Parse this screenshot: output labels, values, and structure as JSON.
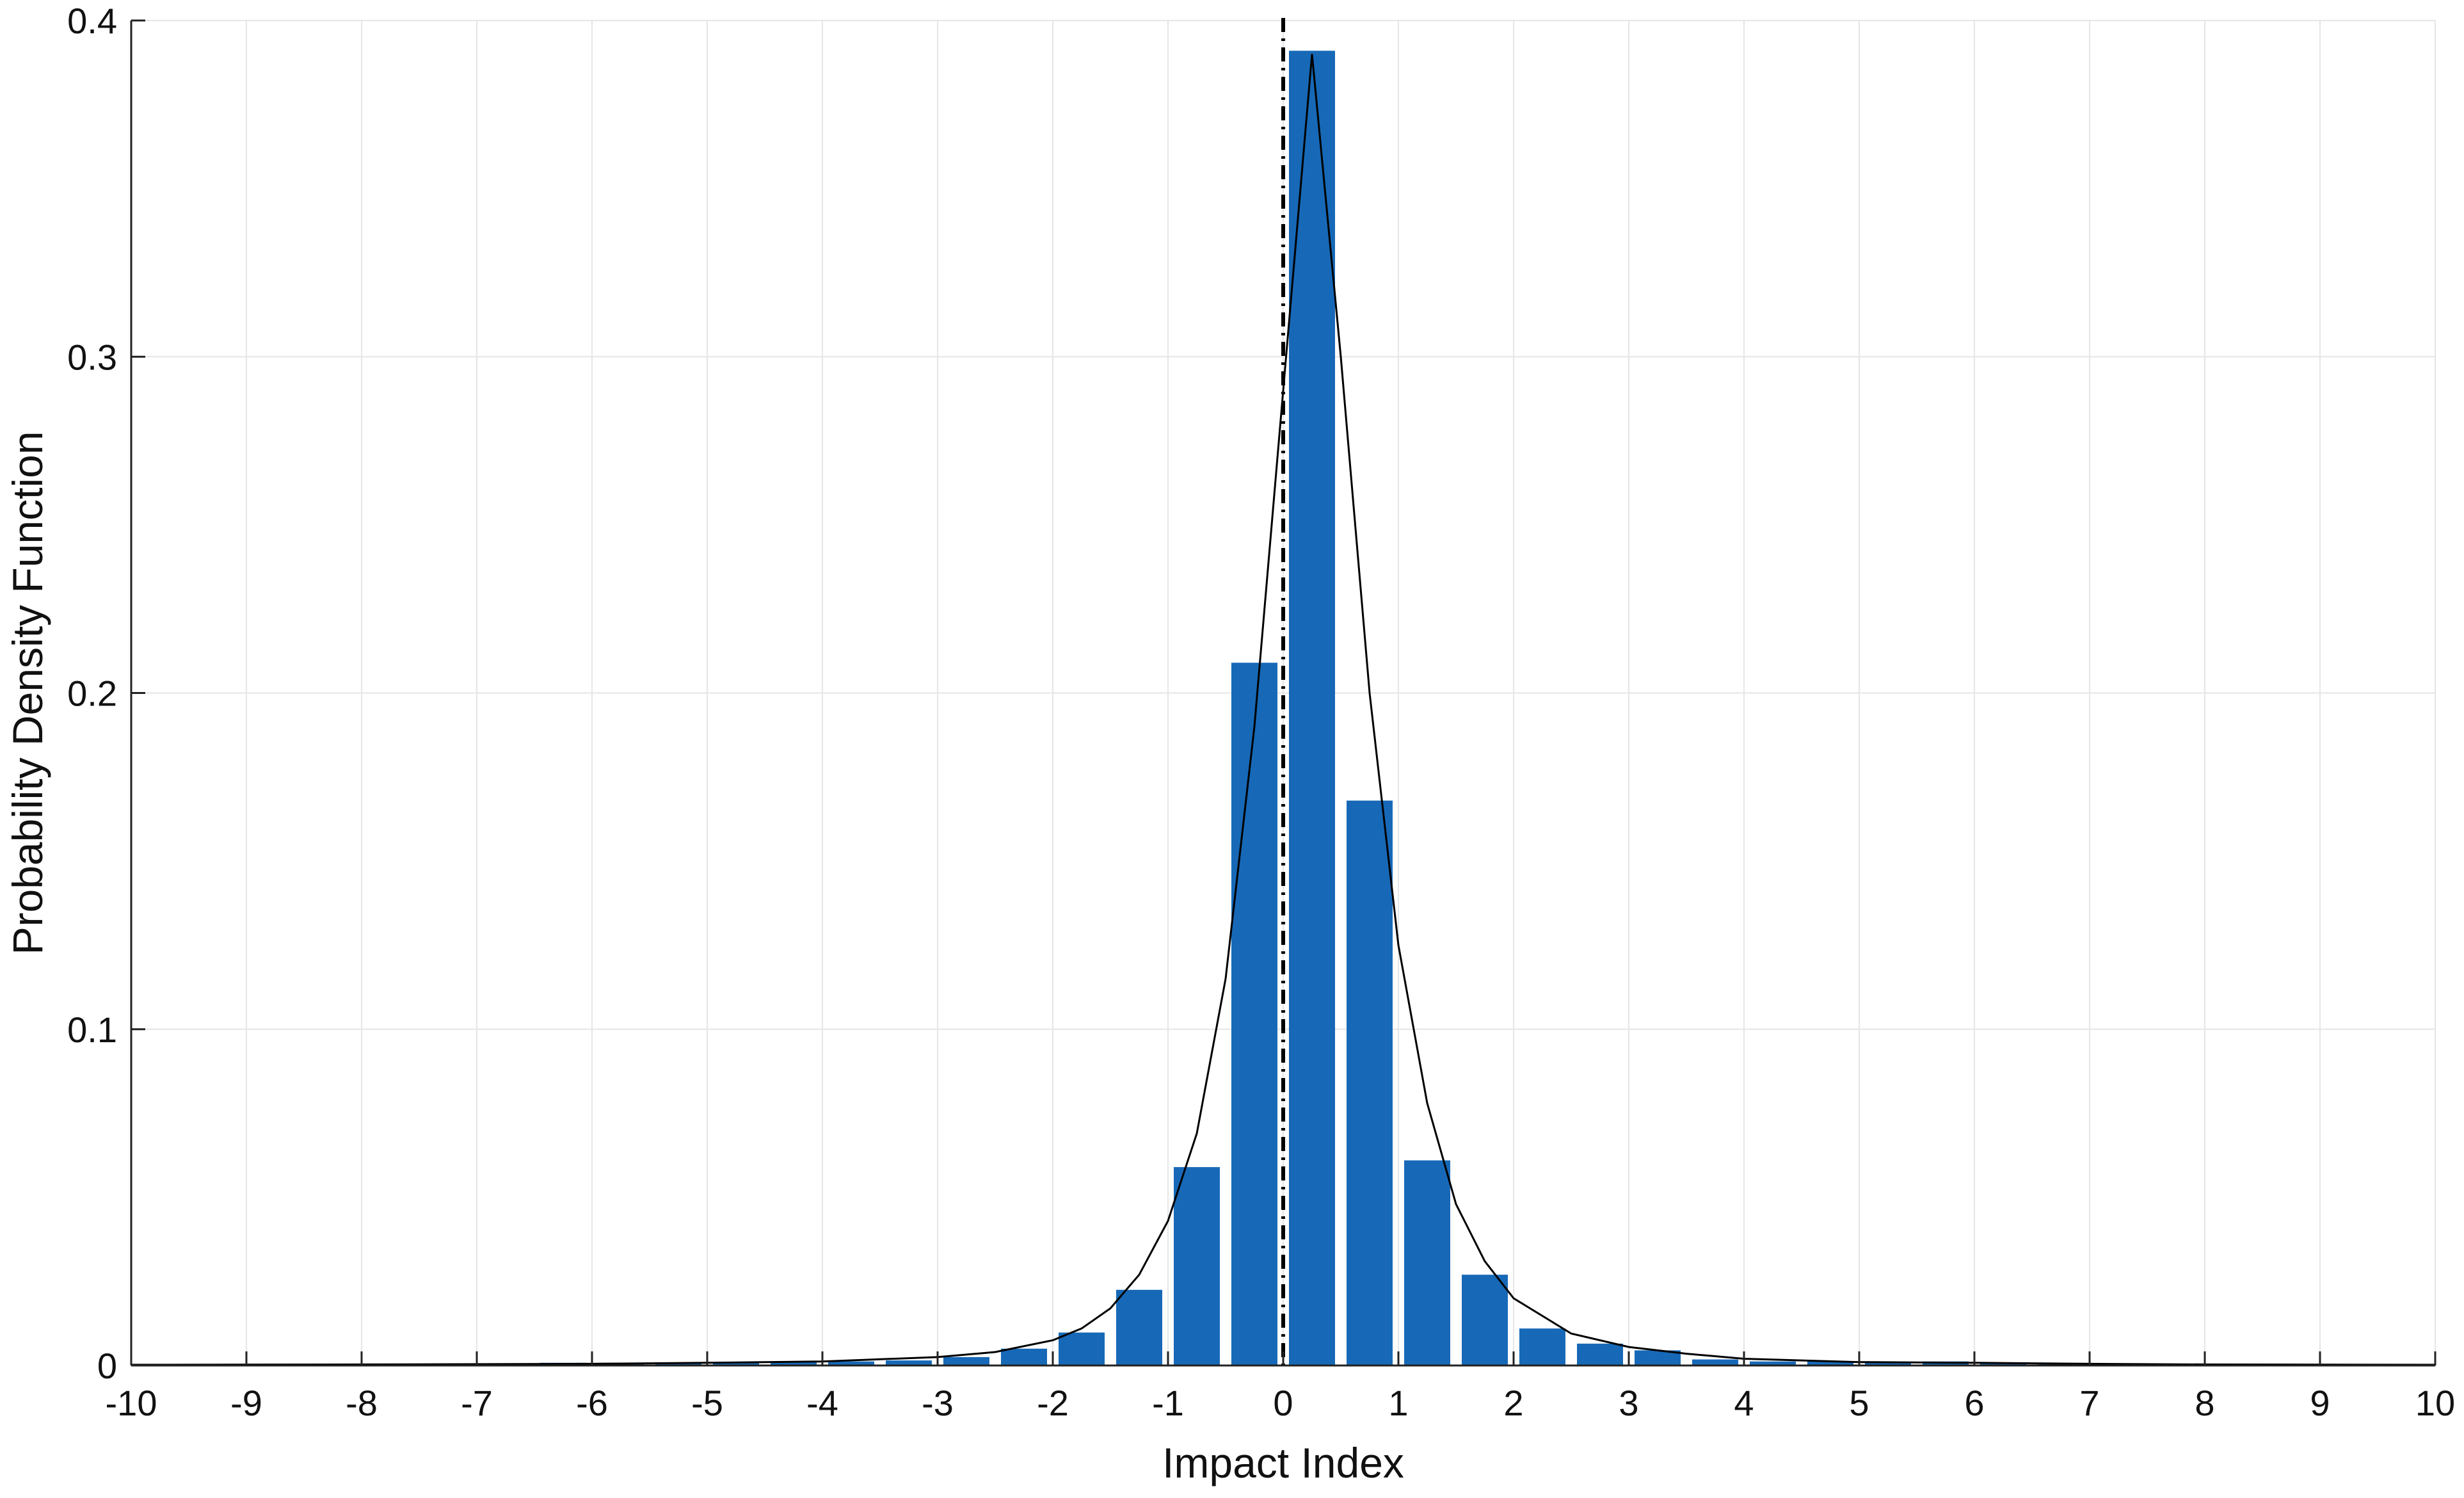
{
  "chart_data": {
    "type": "bar",
    "title": "",
    "xlabel": "Impact Index",
    "ylabel": "Probability Density Function",
    "xlim": [
      -10,
      10
    ],
    "ylim": [
      0,
      0.4
    ],
    "xticks": [
      -10,
      -9,
      -8,
      -7,
      -6,
      -5,
      -4,
      -3,
      -2,
      -1,
      0,
      1,
      2,
      3,
      4,
      5,
      6,
      7,
      8,
      9,
      10
    ],
    "xtick_labels": [
      "-10",
      "-9",
      "-8",
      "-7",
      "-6",
      "-5",
      "-4",
      "-3",
      "-2",
      "-1",
      "0",
      "1",
      "2",
      "3",
      "4",
      "5",
      "6",
      "7",
      "8",
      "9",
      "10"
    ],
    "yticks": [
      0,
      0.1,
      0.2,
      0.3,
      0.4
    ],
    "ytick_labels": [
      "0",
      "0.1",
      "0.2",
      "0.3",
      "0.4"
    ],
    "grid": true,
    "bar_color": "#1769b7",
    "bar_width": 0.4,
    "bars": {
      "x": [
        -9.75,
        -9.25,
        -8.75,
        -8.25,
        -7.75,
        -7.25,
        -6.75,
        -6.25,
        -5.75,
        -5.25,
        -4.75,
        -4.25,
        -3.75,
        -3.25,
        -2.75,
        -2.25,
        -1.75,
        -1.25,
        -0.75,
        -0.25,
        0.25,
        0.75,
        1.25,
        1.75,
        2.25,
        2.75,
        3.25,
        3.75,
        4.25,
        4.75,
        5.25,
        5.75,
        6.25,
        6.75,
        7.25,
        7.75,
        8.25,
        8.75,
        9.25,
        9.75
      ],
      "values": [
        0.0002,
        0.0002,
        0.0002,
        0.0002,
        0.0003,
        0.0005,
        0.0005,
        0.0008,
        0.0008,
        0.0008,
        0.0008,
        0.0012,
        0.0012,
        0.0015,
        0.0025,
        0.005,
        0.0098,
        0.0225,
        0.059,
        0.209,
        0.391,
        0.168,
        0.061,
        0.027,
        0.011,
        0.0065,
        0.0045,
        0.0018,
        0.0012,
        0.0012,
        0.001,
        0.0012,
        0.0008,
        0.0005,
        0.0005,
        0.0003,
        0.0002,
        0.0002,
        0.0002,
        0.0002
      ]
    },
    "fit_curve": {
      "color": "#000000",
      "x": [
        -10,
        -8,
        -6,
        -5,
        -4,
        -3,
        -2.5,
        -2,
        -1.75,
        -1.5,
        -1.25,
        -1,
        -0.75,
        -0.5,
        -0.25,
        0,
        0.25,
        0.5,
        0.75,
        1,
        1.25,
        1.5,
        1.75,
        2,
        2.5,
        3,
        3.5,
        4,
        5,
        6,
        7,
        8,
        10
      ],
      "y": [
        0.0002,
        0.0003,
        0.0005,
        0.0008,
        0.0012,
        0.0025,
        0.004,
        0.0075,
        0.011,
        0.017,
        0.027,
        0.043,
        0.069,
        0.115,
        0.19,
        0.29,
        0.39,
        0.3,
        0.2,
        0.125,
        0.078,
        0.048,
        0.031,
        0.02,
        0.0095,
        0.0055,
        0.0035,
        0.002,
        0.001,
        0.0008,
        0.0005,
        0.0003,
        0.0002
      ]
    },
    "reference_line": {
      "x": 0,
      "style": "dash-dot",
      "color": "#000000"
    }
  }
}
